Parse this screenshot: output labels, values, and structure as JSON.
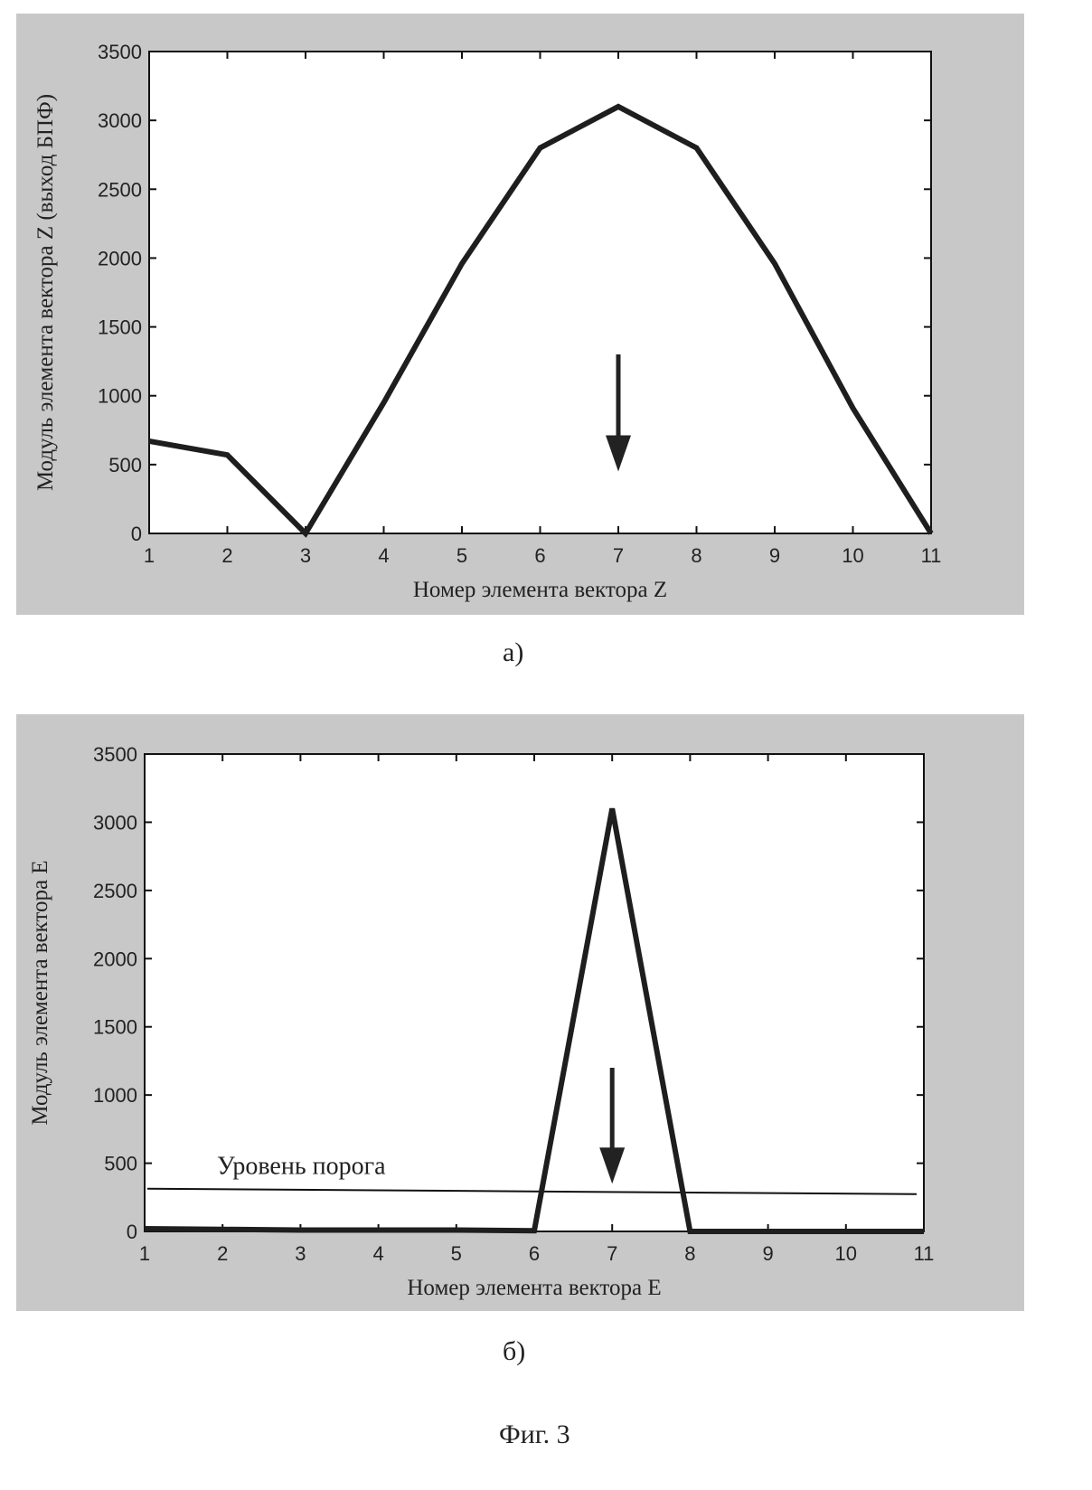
{
  "chart_data": [
    {
      "id": "a",
      "type": "line",
      "title": "",
      "xlabel": "Номер элемента вектора Z",
      "ylabel": "Модуль элемента вектора Z (выход БПФ)",
      "x": [
        1,
        2,
        3,
        4,
        5,
        6,
        7,
        8,
        9,
        10,
        11
      ],
      "series": [
        {
          "name": "|Z|",
          "values": [
            670,
            570,
            0,
            950,
            1960,
            2800,
            3100,
            2800,
            1960,
            910,
            0
          ]
        }
      ],
      "xlim": [
        1,
        11
      ],
      "ylim": [
        0,
        3500
      ],
      "xticks": [
        "1",
        "2",
        "3",
        "4",
        "5",
        "6",
        "7",
        "8",
        "9",
        "10",
        "11"
      ],
      "yticks": [
        "0",
        "500",
        "1000",
        "1500",
        "2000",
        "2500",
        "3000",
        "3500"
      ],
      "grid": false,
      "annotations": [
        {
          "type": "arrow-down",
          "x": 7,
          "y_from": 1300,
          "y_to": 450
        }
      ],
      "caption": "а)"
    },
    {
      "id": "b",
      "type": "line",
      "title": "",
      "xlabel": "Номер элемента вектора E",
      "ylabel": "Модуль элемента вектора E",
      "x": [
        1,
        2,
        3,
        4,
        5,
        6,
        7,
        8,
        9,
        10,
        11
      ],
      "series": [
        {
          "name": "|E|",
          "values": [
            20,
            15,
            10,
            10,
            10,
            5,
            3100,
            0,
            0,
            0,
            0
          ]
        }
      ],
      "threshold": {
        "label": "Уровень порога",
        "value": 300
      },
      "xlim": [
        1,
        11
      ],
      "ylim": [
        0,
        3500
      ],
      "xticks": [
        "1",
        "2",
        "3",
        "4",
        "5",
        "6",
        "7",
        "8",
        "9",
        "10",
        "11"
      ],
      "yticks": [
        "0",
        "500",
        "1000",
        "1500",
        "2000",
        "2500",
        "3000",
        "3500"
      ],
      "grid": false,
      "annotations": [
        {
          "type": "arrow-down",
          "x": 7,
          "y_from": 1200,
          "y_to": 350
        }
      ],
      "caption": "б)"
    }
  ],
  "figure_caption": "Фиг. 3",
  "colors": {
    "panel": "#c8c8c8",
    "plot": "#ffffff",
    "line": "#1e1e1e"
  }
}
